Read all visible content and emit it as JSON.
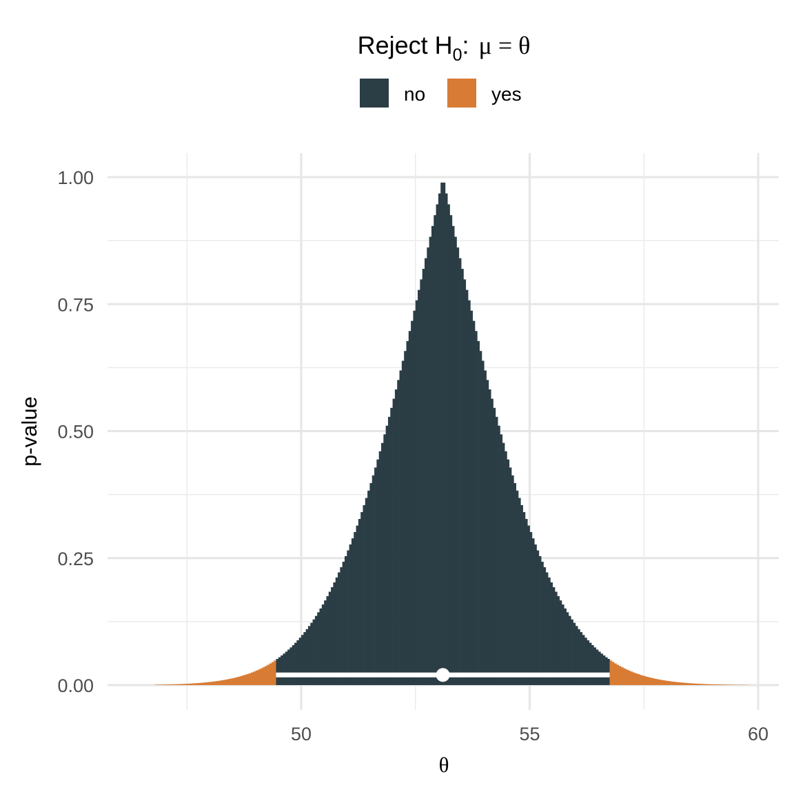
{
  "legend": {
    "title_prefix": "Reject H",
    "title_subscript": "0",
    "title_suffix": ":",
    "title_math": "μ = θ",
    "items": [
      {
        "label": "no",
        "color": "#2b3d45"
      },
      {
        "label": "yes",
        "color": "#d87c35"
      }
    ]
  },
  "axes": {
    "xlabel": "θ",
    "ylabel": "p-value",
    "x_ticks": [
      50,
      55,
      60
    ],
    "y_ticks": [
      "0.00",
      "0.25",
      "0.50",
      "0.75",
      "1.00"
    ]
  },
  "chart_data": {
    "type": "area",
    "title": "",
    "xlabel": "θ",
    "ylabel": "p-value",
    "xlim": [
      46.5,
      60.4
    ],
    "ylim": [
      -0.04,
      1.04
    ],
    "grid": true,
    "legend_position": "top",
    "point_estimate": 53.1,
    "ci_lower": 49.45,
    "ci_upper": 56.75,
    "alpha": 0.05,
    "x_range": [
      46.8,
      59.8
    ],
    "series": [
      {
        "name": "no",
        "color": "#2b3d45",
        "x": [
          49.45,
          50.0,
          50.5,
          51.0,
          51.5,
          52.0,
          52.5,
          53.1,
          53.5,
          54.0,
          54.5,
          55.0,
          55.5,
          56.0,
          56.5,
          56.75
        ],
        "values": [
          0.05,
          0.085,
          0.135,
          0.21,
          0.305,
          0.42,
          0.585,
          1.0,
          0.76,
          0.6,
          0.455,
          0.33,
          0.225,
          0.135,
          0.075,
          0.05
        ]
      },
      {
        "name": "yes",
        "color": "#d87c35",
        "x": [
          46.8,
          47.0,
          47.5,
          48.0,
          48.5,
          49.0,
          49.45,
          56.75,
          57.0,
          57.5,
          58.0,
          58.5,
          59.0,
          59.5,
          59.8
        ],
        "values": [
          0.0005,
          0.0008,
          0.002,
          0.005,
          0.012,
          0.025,
          0.05,
          0.05,
          0.037,
          0.02,
          0.011,
          0.005,
          0.002,
          0.001,
          0.0005
        ]
      }
    ]
  }
}
